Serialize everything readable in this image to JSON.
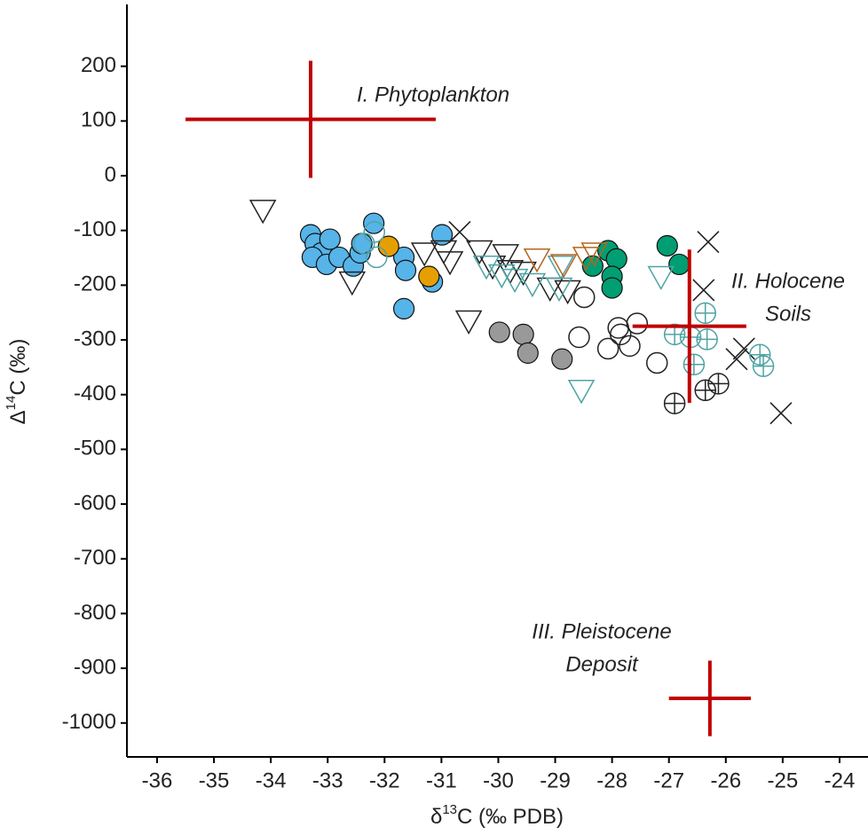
{
  "chart_data": {
    "type": "scatter",
    "xlabel": {
      "pre": "δ",
      "sup": "13",
      "post": "C (‰ PDB)"
    },
    "ylabel": {
      "pre": "Δ",
      "sup": "14",
      "post": "C (‰)"
    },
    "xlim": [
      -36.53,
      -23.5
    ],
    "ylim": [
      -1062,
      313
    ],
    "xticks": [
      -36,
      -35,
      -34,
      -33,
      -32,
      -31,
      -30,
      -29,
      -28,
      -27,
      -26,
      -25,
      -24
    ],
    "yticks": [
      -1000,
      -900,
      -800,
      -700,
      -600,
      -500,
      -400,
      -300,
      -200,
      -100,
      0,
      100,
      200
    ],
    "series": [
      {
        "color": "#56b4e9",
        "marker": "circle",
        "filled": true,
        "x": [
          -33.3,
          -33.22,
          -33.11,
          -33.27,
          -33.02,
          -32.8,
          -32.96,
          -32.55,
          -32.43,
          -32.4,
          -32.19,
          -31.66,
          -31.63,
          -31.66,
          -31.16,
          -30.99
        ],
        "values": [
          -108,
          -124,
          -141,
          -149,
          -162,
          -149,
          -116,
          -165,
          -141,
          -124,
          -87,
          -149,
          -173,
          -243,
          -194,
          -108
        ]
      },
      {
        "color": "#e69f00",
        "marker": "circle",
        "filled": true,
        "x": [
          -31.93,
          -31.22
        ],
        "values": [
          -129,
          -184
        ]
      },
      {
        "color": "#009e73",
        "marker": "circle",
        "filled": true,
        "x": [
          -28.34,
          -28.07,
          -27.92,
          -28.0,
          -28.0,
          -27.03,
          -26.82
        ],
        "values": [
          -165,
          -137,
          -152,
          -184,
          -205,
          -128,
          -162
        ]
      },
      {
        "color": "#999999",
        "marker": "circle",
        "filled": true,
        "x": [
          -29.98,
          -29.56,
          -29.48,
          -28.88
        ],
        "values": [
          -286,
          -290,
          -324,
          -335
        ]
      },
      {
        "color": "#222222",
        "marker": "circle",
        "filled": false,
        "x": [
          -28.49,
          -28.58,
          -28.07,
          -27.89,
          -27.85,
          -27.69,
          -27.56,
          -27.21
        ],
        "values": [
          -222,
          -295,
          -316,
          -278,
          -290,
          -311,
          -270,
          -342
        ]
      },
      {
        "color": "#4fa3a5",
        "marker": "circle",
        "filled": false,
        "x": [
          -32.18,
          -32.14,
          -32.36
        ],
        "values": [
          -103,
          -149,
          -124
        ]
      },
      {
        "color": "#222222",
        "marker": "triangle",
        "filled": false,
        "x": [
          -34.14,
          -32.57,
          -31.3,
          -30.96,
          -30.85,
          -30.52,
          -30.33,
          -29.87,
          -29.79,
          -29.56,
          -30.1,
          -29.09,
          -28.78
        ],
        "values": [
          -63,
          -194,
          -141,
          -137,
          -157,
          -265,
          -137,
          -144,
          -173,
          -176,
          -165,
          -205,
          -210
        ]
      },
      {
        "color": "#4fa3a5",
        "marker": "triangle",
        "filled": false,
        "x": [
          -30.21,
          -29.94,
          -29.71,
          -29.4,
          -28.9,
          -28.54,
          -27.14,
          -28.93
        ],
        "values": [
          -165,
          -181,
          -189,
          -197,
          -165,
          -392,
          -184,
          -205
        ]
      },
      {
        "color": "#b5651d",
        "marker": "triangle",
        "filled": false,
        "x": [
          -29.32,
          -28.85,
          -28.46,
          -28.31
        ],
        "values": [
          -152,
          -162,
          -149,
          -141
        ]
      },
      {
        "color": "#222222",
        "marker": "x",
        "filled": false,
        "x": [
          -30.68,
          -26.31,
          -26.39,
          -25.68,
          -25.81,
          -25.03
        ],
        "values": [
          -103,
          -121,
          -209,
          -316,
          -335,
          -434
        ]
      },
      {
        "color": "#222222",
        "marker": "circle-plus",
        "filled": false,
        "x": [
          -26.9,
          -26.36,
          -26.13
        ],
        "values": [
          -416,
          -392,
          -380
        ]
      },
      {
        "color": "#4fa3a5",
        "marker": "circle-plus",
        "filled": false,
        "x": [
          -26.9,
          -26.62,
          -26.36,
          -26.33,
          -26.56,
          -25.4,
          -25.34
        ],
        "values": [
          -290,
          -295,
          -251,
          -299,
          -345,
          -327,
          -348
        ]
      }
    ],
    "crosses": {
      "color": "#c00000",
      "x": [
        -33.3,
        -26.64,
        -26.28
      ],
      "values": [
        103,
        -275,
        -955
      ],
      "xerr": [
        2.2,
        1.0,
        0.72
      ],
      "yerr": [
        107,
        140,
        69
      ]
    },
    "annotations": [
      {
        "lines": [
          "I. Phytoplankton"
        ]
      },
      {
        "lines": [
          "II. Holocene",
          "Soils"
        ]
      },
      {
        "lines": [
          "III. Pleistocene",
          "Deposit"
        ]
      }
    ]
  }
}
